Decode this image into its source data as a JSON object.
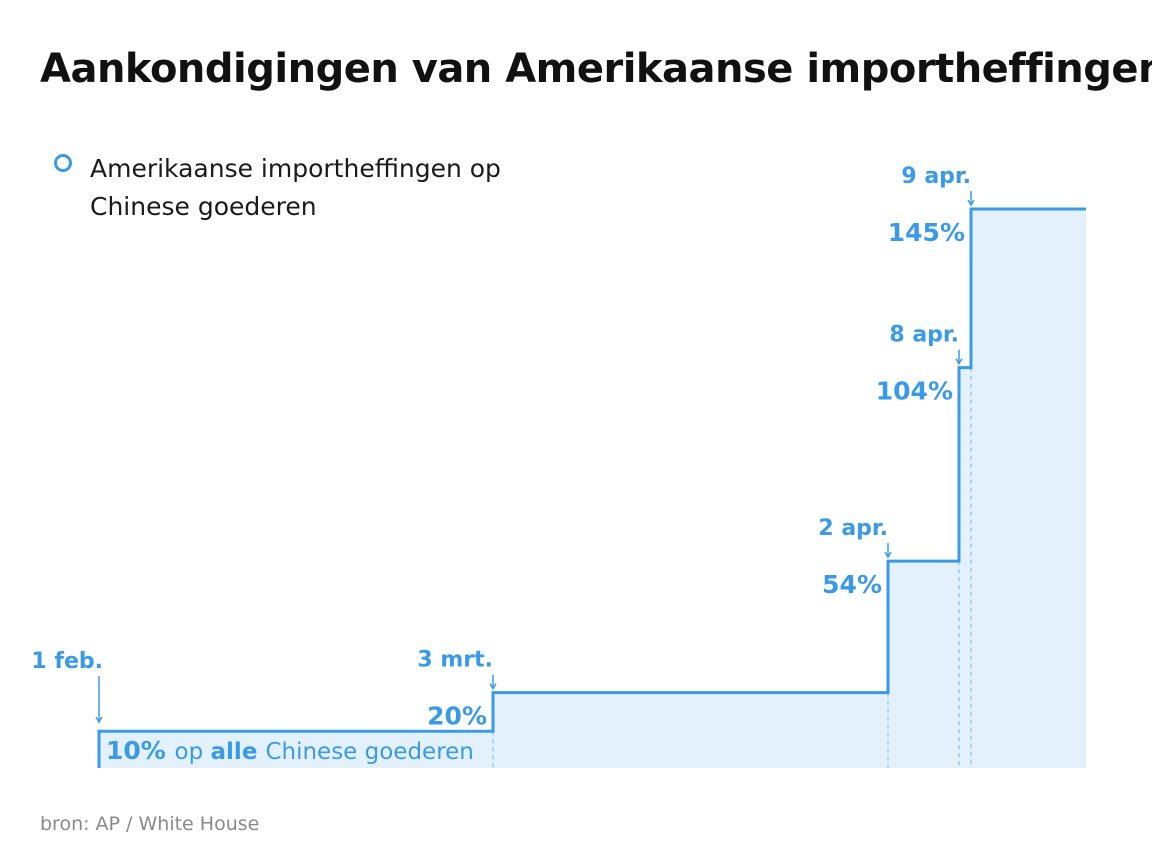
{
  "title": "Aankondigingen van Amerikaanse importheffingen",
  "legend": {
    "label": "Amerikaanse importheffingen op Chinese goederen",
    "color": "#3b9ae6"
  },
  "source": "bron: AP / White House",
  "chart_data": {
    "type": "area",
    "step": true,
    "series": [
      {
        "name": "Amerikaanse importheffingen op Chinese goederen",
        "color": "#3b9ae6"
      }
    ],
    "points": [
      {
        "date": "1 feb.",
        "value": 10,
        "value_label": "10%"
      },
      {
        "date": "3 mrt.",
        "value": 20,
        "value_label": "20%"
      },
      {
        "date": "2 apr.",
        "value": 54,
        "value_label": "54%"
      },
      {
        "date": "8 apr.",
        "value": 104,
        "value_label": "104%"
      },
      {
        "date": "9 apr.",
        "value": 145,
        "value_label": "145%"
      }
    ],
    "first_note": {
      "pre": "op",
      "bold": "alle",
      "post": "Chinese goederen"
    },
    "ylim": [
      0,
      145
    ],
    "grid": false,
    "legend_position": "top-left"
  }
}
